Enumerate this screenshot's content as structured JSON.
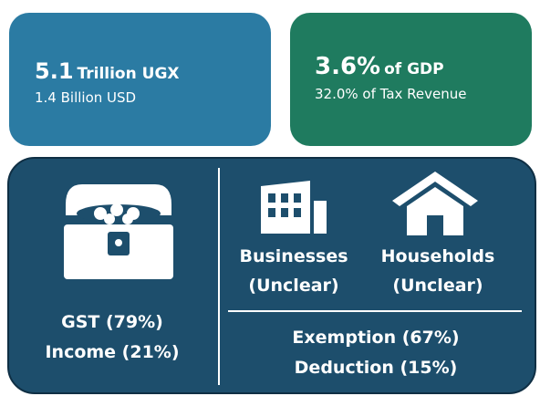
{
  "cards": [
    {
      "amount": "5.1",
      "unit": "Trillion UGX",
      "note": "1.4 Billion USD"
    },
    {
      "amount": "3.6%",
      "unit": "of GDP",
      "note": "32.0% of Tax Revenue"
    }
  ],
  "taxes": [
    "GST (79%)",
    "Income (21%)"
  ],
  "beneficiaries": [
    {
      "label": "Businesses",
      "status": "(Unclear)"
    },
    {
      "label": "Households",
      "status": "(Unclear)"
    }
  ],
  "types": [
    "Exemption (67%)",
    "Deduction (15%)"
  ]
}
